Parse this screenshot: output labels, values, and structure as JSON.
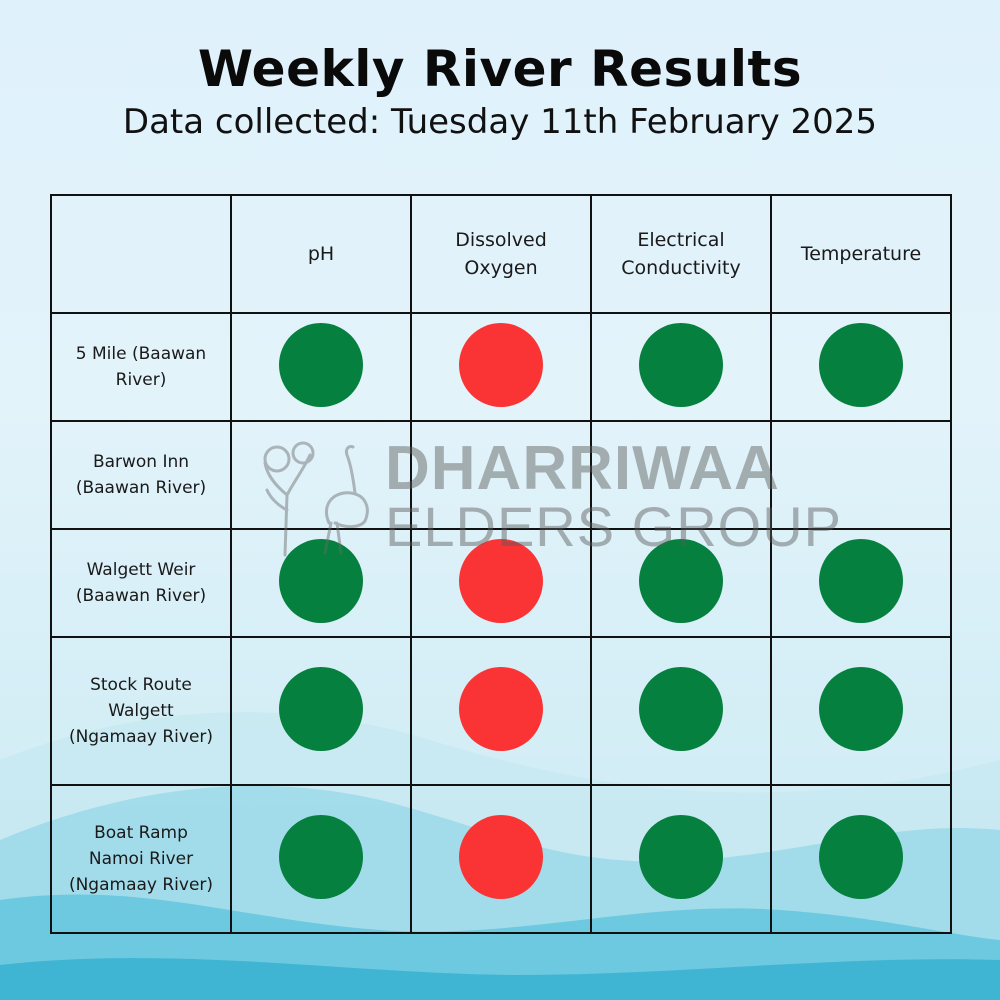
{
  "title": "Weekly River Results",
  "subtitle": "Data collected: Tuesday 11th February 2025",
  "columns": [
    "",
    "pH",
    "Dissolved Oxygen",
    "Electrical Conductivity",
    "Temperature"
  ],
  "rows": [
    {
      "site": "5 Mile (Baawan River)",
      "results": [
        "green",
        "red",
        "green",
        "green"
      ]
    },
    {
      "site": "Barwon Inn (Baawan River)",
      "results": [
        "",
        "",
        "",
        ""
      ]
    },
    {
      "site": "Walgett Weir (Baawan River)",
      "results": [
        "green",
        "red",
        "green",
        "green"
      ]
    },
    {
      "site": "Stock Route Walgett (Ngamaay River)",
      "results": [
        "green",
        "red",
        "green",
        "green"
      ]
    },
    {
      "site": "Boat Ramp Namoi River (Ngamaay River)",
      "results": [
        "green",
        "red",
        "green",
        "green"
      ]
    }
  ],
  "colors": {
    "green": "#05803e",
    "red": "#fa3434",
    "background": "#dff1fb",
    "wave": "#5bc3dc"
  },
  "watermark": {
    "line1": "DHARRIWAA",
    "line2": "ELDERS GROUP"
  },
  "icons": {
    "watermark_emblem": "emu-and-tree-logo-icon",
    "status_dot": "status-circle-icon"
  }
}
